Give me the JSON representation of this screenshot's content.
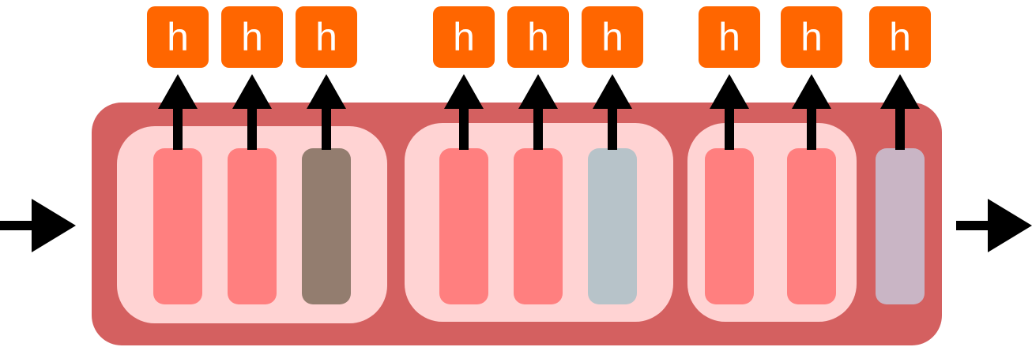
{
  "colors": {
    "outer_block": "#d46060",
    "inner_group": "#ffd3d3",
    "cell_default": "#ff7f7f",
    "cell_group1_last": "#937d6f",
    "cell_group2_last": "#b7c3c9",
    "cell_extra": "#c9b5c5",
    "hidden_box": "#ff6600",
    "hidden_text": "#ffffff",
    "arrow": "#000000"
  },
  "diagram": {
    "output_label": "h",
    "groups": [
      {
        "cells": [
          {
            "label": "h",
            "color": "#ff7f7f"
          },
          {
            "label": "h",
            "color": "#ff7f7f"
          },
          {
            "label": "h",
            "color": "#937d6f"
          }
        ]
      },
      {
        "cells": [
          {
            "label": "h",
            "color": "#ff7f7f"
          },
          {
            "label": "h",
            "color": "#ff7f7f"
          },
          {
            "label": "h",
            "color": "#b7c3c9"
          }
        ]
      },
      {
        "cells": [
          {
            "label": "h",
            "color": "#ff7f7f"
          },
          {
            "label": "h",
            "color": "#ff7f7f"
          }
        ]
      }
    ],
    "extra_cell": {
      "label": "h",
      "color": "#c9b5c5"
    }
  }
}
